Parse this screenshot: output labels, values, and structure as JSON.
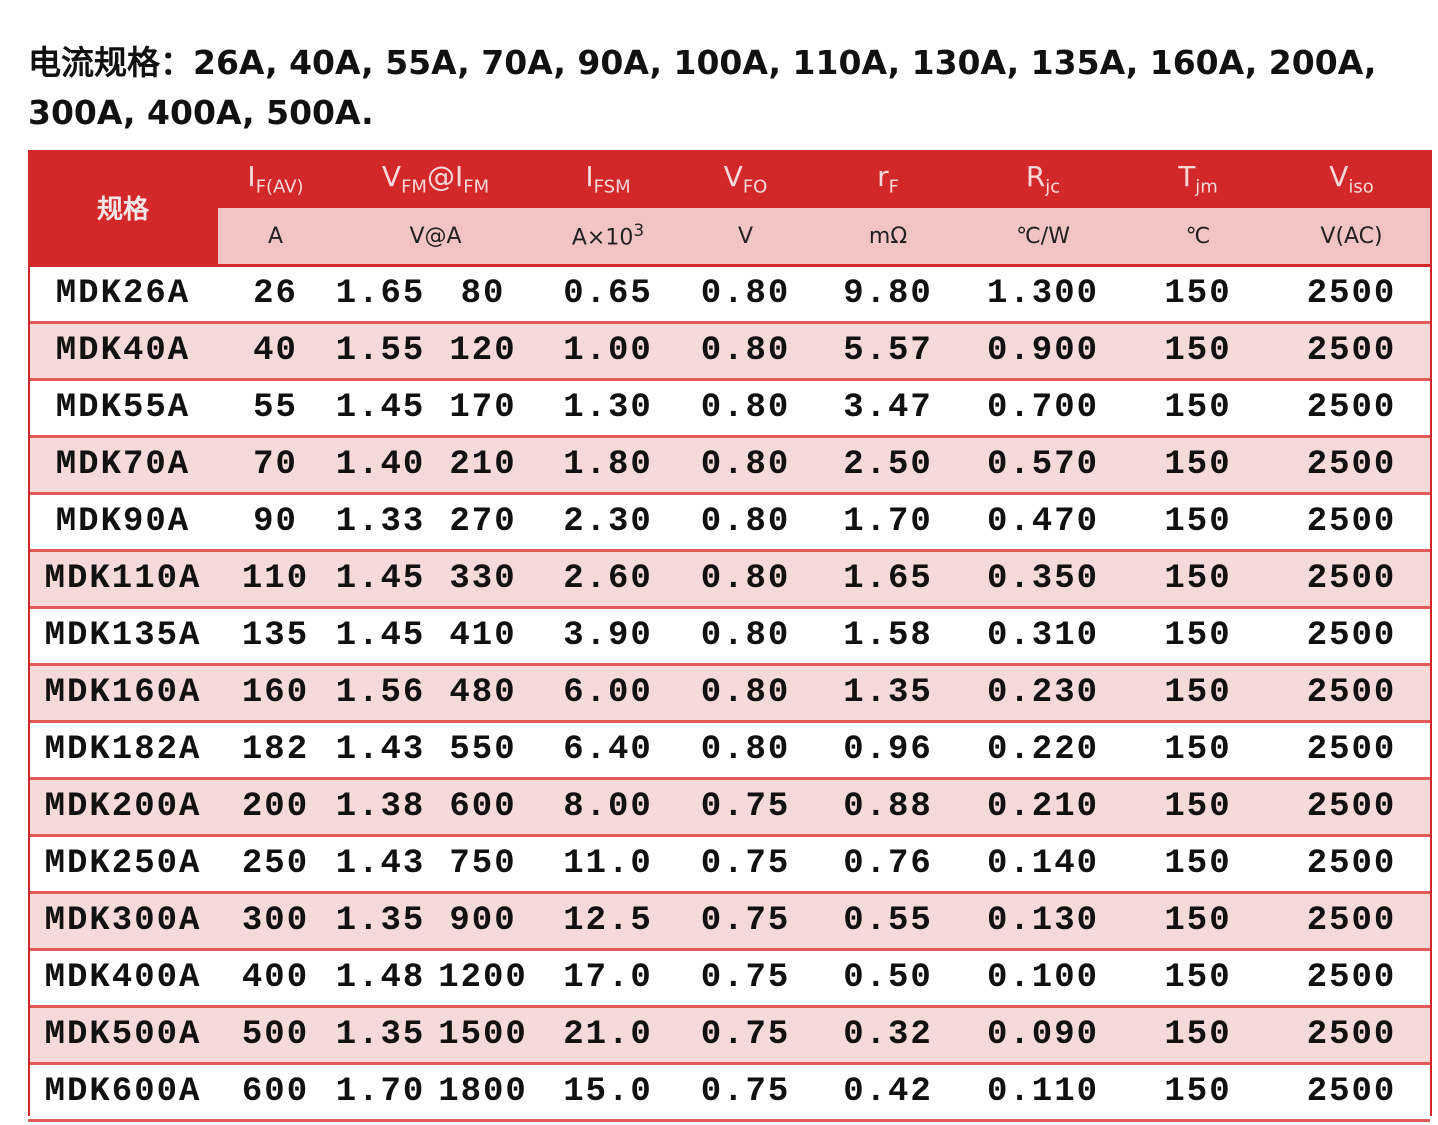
{
  "title": "电流规格：26A, 40A, 55A, 70A, 90A, 100A, 110A, 130A, 135A, 160A, 200A, 300A, 400A, 500A.",
  "table": {
    "spec_header": "规格",
    "params": [
      {
        "symbol": [
          {
            "base": "I",
            "sub": "F(AV)"
          }
        ],
        "unit": "A"
      },
      {
        "symbol": [
          {
            "base": "V",
            "sub": "FM"
          },
          {
            "base": "@I",
            "sub": "FM"
          }
        ],
        "unit": "V@A"
      },
      {
        "symbol": [
          {
            "base": "I",
            "sub": "FSM"
          }
        ],
        "unit": {
          "text": "A×10",
          "sup": "3"
        }
      },
      {
        "symbol": [
          {
            "base": "V",
            "sub": "FO"
          }
        ],
        "unit": "V"
      },
      {
        "symbol": [
          {
            "base": "r",
            "sub": "F"
          }
        ],
        "unit": "mΩ"
      },
      {
        "symbol": [
          {
            "base": "R",
            "sub": "jc"
          }
        ],
        "unit": "℃/W"
      },
      {
        "symbol": [
          {
            "base": "T",
            "sub": "jm"
          }
        ],
        "unit": "℃"
      },
      {
        "symbol": [
          {
            "base": "V",
            "sub": "iso"
          }
        ],
        "unit": "V(AC)"
      }
    ],
    "rows": [
      [
        "MDK26A",
        "26",
        "1.65",
        "80",
        "0.65",
        "0.80",
        "9.80",
        "1.300",
        "150",
        "2500"
      ],
      [
        "MDK40A",
        "40",
        "1.55",
        "120",
        "1.00",
        "0.80",
        "5.57",
        "0.900",
        "150",
        "2500"
      ],
      [
        "MDK55A",
        "55",
        "1.45",
        "170",
        "1.30",
        "0.80",
        "3.47",
        "0.700",
        "150",
        "2500"
      ],
      [
        "MDK70A",
        "70",
        "1.40",
        "210",
        "1.80",
        "0.80",
        "2.50",
        "0.570",
        "150",
        "2500"
      ],
      [
        "MDK90A",
        "90",
        "1.33",
        "270",
        "2.30",
        "0.80",
        "1.70",
        "0.470",
        "150",
        "2500"
      ],
      [
        "MDK110A",
        "110",
        "1.45",
        "330",
        "2.60",
        "0.80",
        "1.65",
        "0.350",
        "150",
        "2500"
      ],
      [
        "MDK135A",
        "135",
        "1.45",
        "410",
        "3.90",
        "0.80",
        "1.58",
        "0.310",
        "150",
        "2500"
      ],
      [
        "MDK160A",
        "160",
        "1.56",
        "480",
        "6.00",
        "0.80",
        "1.35",
        "0.230",
        "150",
        "2500"
      ],
      [
        "MDK182A",
        "182",
        "1.43",
        "550",
        "6.40",
        "0.80",
        "0.96",
        "0.220",
        "150",
        "2500"
      ],
      [
        "MDK200A",
        "200",
        "1.38",
        "600",
        "8.00",
        "0.75",
        "0.88",
        "0.210",
        "150",
        "2500"
      ],
      [
        "MDK250A",
        "250",
        "1.43",
        "750",
        "11.0",
        "0.75",
        "0.76",
        "0.140",
        "150",
        "2500"
      ],
      [
        "MDK300A",
        "300",
        "1.35",
        "900",
        "12.5",
        "0.75",
        "0.55",
        "0.130",
        "150",
        "2500"
      ],
      [
        "MDK400A",
        "400",
        "1.48",
        "1200",
        "17.0",
        "0.75",
        "0.50",
        "0.100",
        "150",
        "2500"
      ],
      [
        "MDK500A",
        "500",
        "1.35",
        "1500",
        "21.0",
        "0.75",
        "0.32",
        "0.090",
        "150",
        "2500"
      ],
      [
        "MDK600A",
        "600",
        "1.70",
        "1800",
        "15.0",
        "0.75",
        "0.42",
        "0.110",
        "150",
        "2500"
      ]
    ]
  }
}
